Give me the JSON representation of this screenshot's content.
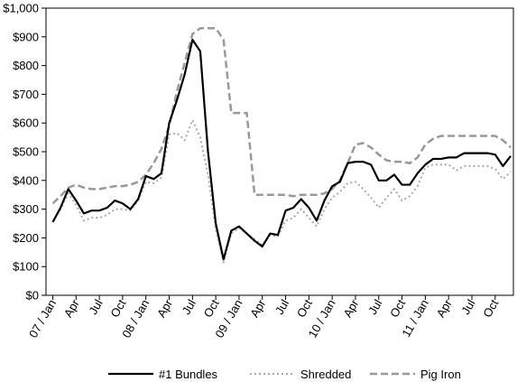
{
  "chart_data": {
    "type": "line",
    "ylim": [
      0,
      1000
    ],
    "yticks": [
      "$0",
      "$100",
      "$200",
      "$300",
      "$400",
      "$500",
      "$600",
      "$700",
      "$800",
      "$900",
      "$1,000"
    ],
    "ytick_values": [
      0,
      100,
      200,
      300,
      400,
      500,
      600,
      700,
      800,
      900,
      1000
    ],
    "xticks": [
      "07 / Jan",
      "Apr",
      "Jul",
      "Oct",
      "08 / Jan",
      "Apr",
      "Jul",
      "Oct",
      "09 / Jan",
      "Apr",
      "Jul",
      "Oct",
      "10 / Jan",
      "Apr",
      "Jul",
      "Oct",
      "11 / Jan",
      "Apr",
      "Jul",
      "Oct"
    ],
    "xtick_months": [
      0,
      3,
      6,
      9,
      12,
      15,
      18,
      21,
      24,
      27,
      30,
      33,
      36,
      39,
      42,
      45,
      48,
      51,
      54,
      57
    ],
    "x_months": [
      0,
      1,
      2,
      3,
      4,
      5,
      6,
      7,
      8,
      9,
      10,
      11,
      12,
      13,
      14,
      15,
      16,
      17,
      18,
      19,
      20,
      21,
      22,
      23,
      24,
      25,
      26,
      27,
      28,
      29,
      30,
      31,
      32,
      33,
      34,
      35,
      36,
      37,
      38,
      39,
      40,
      41,
      42,
      43,
      44,
      45,
      46,
      47,
      48,
      49,
      50,
      51,
      52,
      53,
      54,
      55,
      56,
      57,
      58,
      59
    ],
    "grid": false,
    "legend_position": "bottom",
    "series": [
      {
        "name": "#1 Bundles",
        "color": "#000000",
        "dash": "solid",
        "values": [
          255,
          305,
          370,
          330,
          285,
          295,
          295,
          305,
          330,
          320,
          300,
          335,
          415,
          405,
          425,
          600,
          680,
          770,
          890,
          850,
          500,
          250,
          125,
          225,
          240,
          215,
          190,
          170,
          215,
          210,
          295,
          305,
          335,
          305,
          260,
          330,
          380,
          395,
          460,
          465,
          465,
          455,
          400,
          400,
          420,
          385,
          385,
          425,
          455,
          475,
          475,
          480,
          480,
          495,
          495,
          495,
          495,
          490,
          450,
          485
        ]
      },
      {
        "name": "Shredded",
        "color": "#aaaaaa",
        "dash": "dotted",
        "values": [
          255,
          300,
          355,
          315,
          260,
          270,
          270,
          280,
          300,
          300,
          295,
          330,
          395,
          390,
          410,
          560,
          565,
          540,
          610,
          550,
          420,
          230,
          115,
          215,
          235,
          215,
          195,
          175,
          210,
          205,
          260,
          270,
          300,
          270,
          240,
          300,
          340,
          360,
          390,
          395,
          370,
          340,
          305,
          340,
          370,
          330,
          345,
          380,
          445,
          455,
          455,
          455,
          435,
          450,
          450,
          450,
          450,
          440,
          405,
          430
        ]
      },
      {
        "name": "Pig Iron",
        "color": "#999999",
        "dash": "dashed",
        "values": [
          320,
          345,
          375,
          385,
          375,
          370,
          370,
          375,
          380,
          380,
          385,
          395,
          420,
          460,
          510,
          590,
          710,
          810,
          910,
          930,
          930,
          930,
          890,
          635,
          635,
          635,
          350,
          350,
          350,
          350,
          350,
          345,
          350,
          350,
          350,
          355,
          370,
          400,
          460,
          525,
          530,
          515,
          490,
          470,
          465,
          465,
          460,
          480,
          525,
          545,
          555,
          555,
          555,
          555,
          555,
          555,
          555,
          555,
          540,
          515
        ]
      }
    ]
  }
}
